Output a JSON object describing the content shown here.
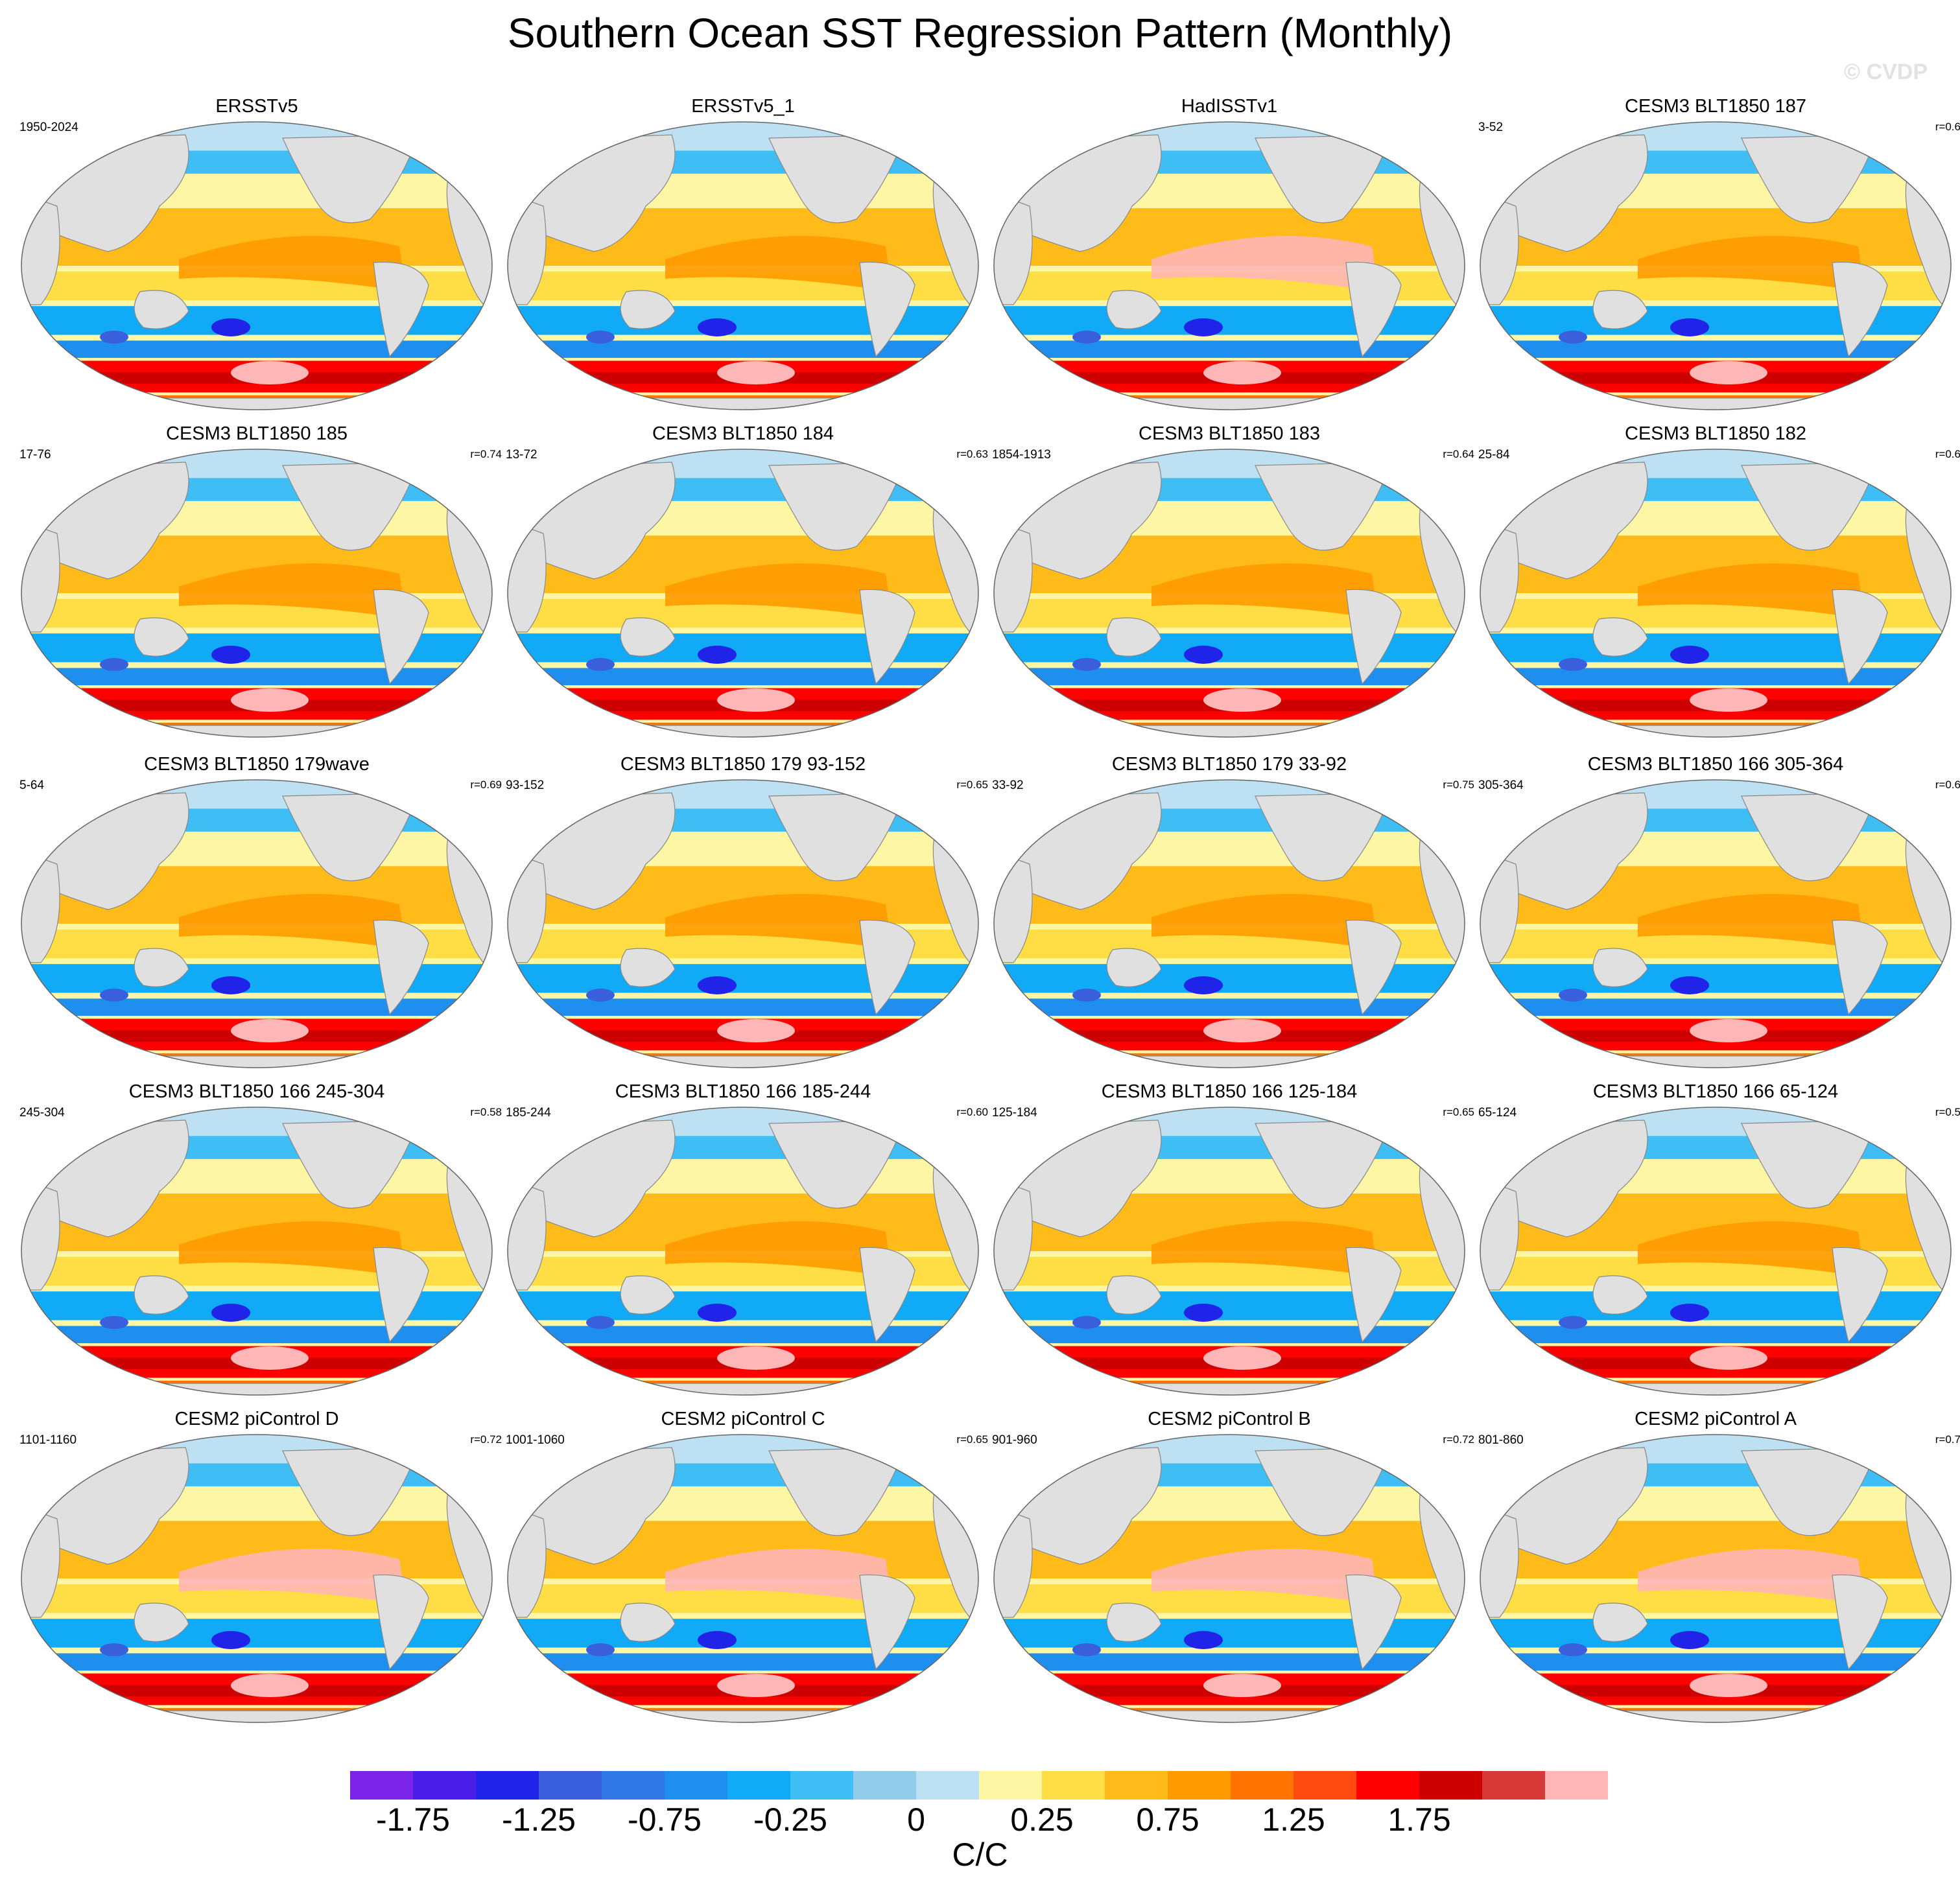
{
  "figure": {
    "title": "Southern Ocean SST Regression Pattern (Monthly)",
    "watermark": "© CVDP",
    "units": "C/C"
  },
  "colorbar": {
    "colors": [
      "#7b23e8",
      "#4a1ee8",
      "#1f24e8",
      "#3a5fdc",
      "#2f78e6",
      "#1f8fef",
      "#10aaf6",
      "#3fbef5",
      "#93cbea",
      "#bde0f2",
      "#fdf6a4",
      "#ffdd44",
      "#ffbb1a",
      "#ff9b00",
      "#ff7400",
      "#ff4b10",
      "#ff0000",
      "#cc0000",
      "#d63838",
      "#ffb6b6"
    ],
    "tick_labels": [
      "-1.75",
      "-1.25",
      "-0.75",
      "-0.25",
      "0",
      "0.25",
      "0.75",
      "1.25",
      "1.75"
    ]
  },
  "chart_data": {
    "type": "map",
    "projection": "Robinson, Pacific-centered",
    "colorbar_levels": [
      -2,
      -1.75,
      -1.5,
      -1.25,
      -1,
      -0.75,
      -0.5,
      -0.25,
      -0.1,
      0,
      0.1,
      0.25,
      0.5,
      0.75,
      1,
      1.25,
      1.5,
      1.75,
      2
    ],
    "panels": [
      {
        "title": "ERSSTv5",
        "period": "1950-2024",
        "corr": ""
      },
      {
        "title": "ERSSTv5_1",
        "period": "",
        "corr": ""
      },
      {
        "title": "HadISSTv1",
        "period": "",
        "corr": ""
      },
      {
        "title": "CESM3 BLT1850 187",
        "period": "3-52",
        "corr": "r=0.6"
      },
      {
        "title": "CESM3 BLT1850 185",
        "period": "17-76",
        "corr": "r=0.74"
      },
      {
        "title": "CESM3 BLT1850 184",
        "period": "13-72",
        "corr": "r=0.63"
      },
      {
        "title": "CESM3 BLT1850 183",
        "period": "1854-1913",
        "corr": "r=0.64"
      },
      {
        "title": "CESM3 BLT1850 182",
        "period": "25-84",
        "corr": "r=0.6"
      },
      {
        "title": "CESM3 BLT1850 179wave",
        "period": "5-64",
        "corr": "r=0.69"
      },
      {
        "title": "CESM3 BLT1850 179 93-152",
        "period": "93-152",
        "corr": "r=0.65"
      },
      {
        "title": "CESM3 BLT1850 179 33-92",
        "period": "33-92",
        "corr": "r=0.75"
      },
      {
        "title": "CESM3 BLT1850 166 305-364",
        "period": "305-364",
        "corr": "r=0.6"
      },
      {
        "title": "CESM3 BLT1850 166 245-304",
        "period": "245-304",
        "corr": "r=0.58"
      },
      {
        "title": "CESM3 BLT1850 166 185-244",
        "period": "185-244",
        "corr": "r=0.60"
      },
      {
        "title": "CESM3 BLT1850 166 125-184",
        "period": "125-184",
        "corr": "r=0.65"
      },
      {
        "title": "CESM3 BLT1850 166 65-124",
        "period": "65-124",
        "corr": "r=0.5"
      },
      {
        "title": "CESM2 piControl D",
        "period": "1101-1160",
        "corr": "r=0.72"
      },
      {
        "title": "CESM2 piControl C",
        "period": "1001-1060",
        "corr": "r=0.65"
      },
      {
        "title": "CESM2 piControl B",
        "period": "901-960",
        "corr": "r=0.72"
      },
      {
        "title": "CESM2 piControl A",
        "period": "801-860",
        "corr": "r=0.7"
      }
    ]
  }
}
